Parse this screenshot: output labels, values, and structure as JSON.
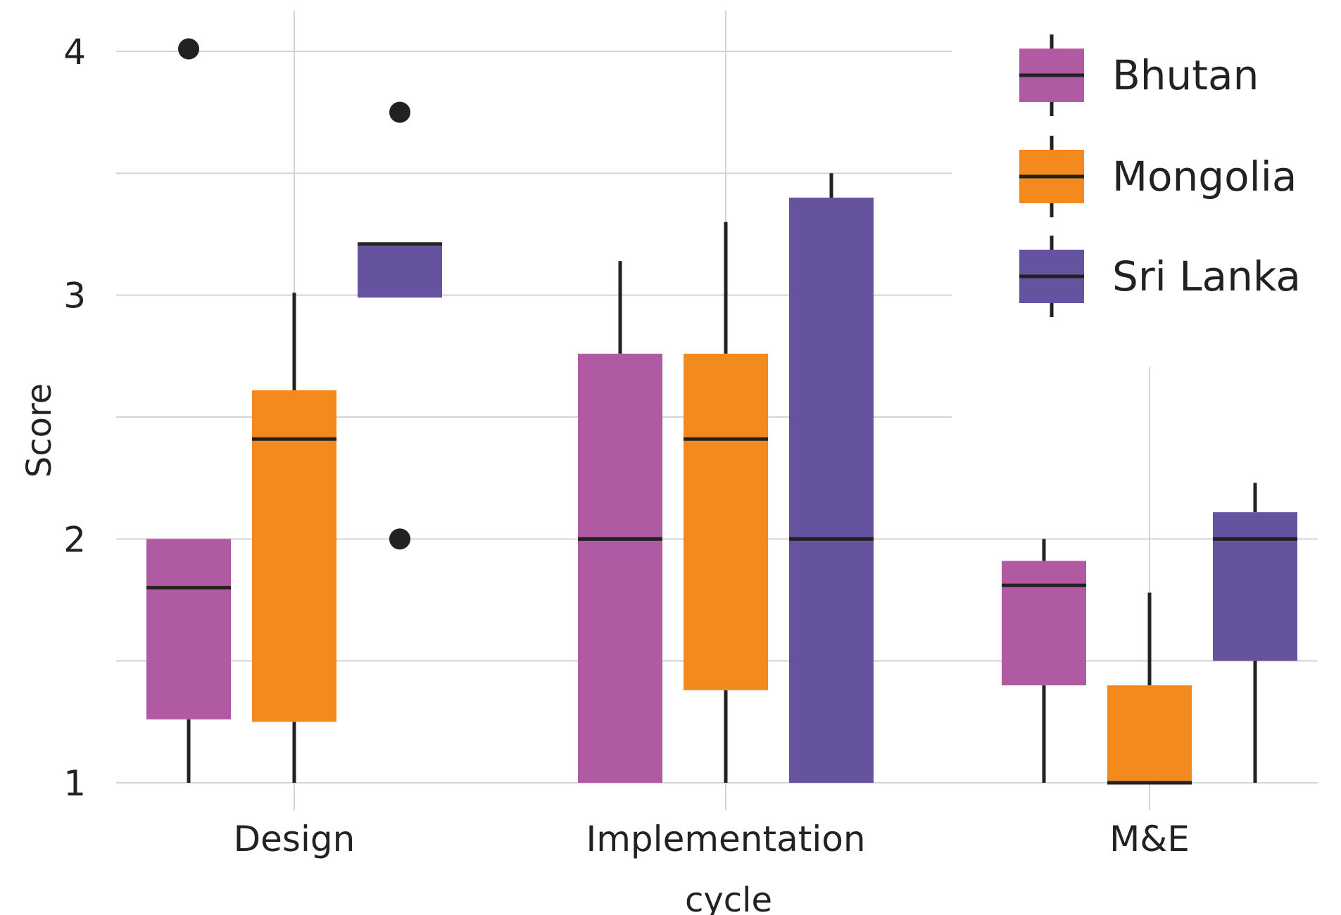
{
  "chart_data": {
    "type": "box",
    "xlabel": "cycle",
    "ylabel": "Score",
    "categories": [
      "Design",
      "Implementation",
      "M&E"
    ],
    "ylim": [
      0.82,
      4.2
    ],
    "yticks": [
      "1",
      "2",
      "3",
      "4"
    ],
    "grid": true,
    "legend": {
      "placement": "top-right"
    },
    "series": [
      {
        "name": "Bhutan",
        "color": "#b05aa4",
        "boxes": [
          {
            "category": "Design",
            "whisker_low": 1.0,
            "q1": 1.26,
            "median": 1.8,
            "q3": 2.0,
            "whisker_high": 2.0,
            "outliers": [
              4.01
            ]
          },
          {
            "category": "Implementation",
            "whisker_low": 1.0,
            "q1": 1.0,
            "median": 2.0,
            "q3": 2.76,
            "whisker_high": 3.14,
            "outliers": []
          },
          {
            "category": "M&E",
            "whisker_low": 1.0,
            "q1": 1.4,
            "median": 1.81,
            "q3": 1.91,
            "whisker_high": 2.0,
            "outliers": []
          }
        ]
      },
      {
        "name": "Mongolia",
        "color": "#f28a1e",
        "boxes": [
          {
            "category": "Design",
            "whisker_low": 1.0,
            "q1": 1.25,
            "median": 2.41,
            "q3": 2.61,
            "whisker_high": 3.01,
            "outliers": []
          },
          {
            "category": "Implementation",
            "whisker_low": 1.0,
            "q1": 1.38,
            "median": 2.41,
            "q3": 2.76,
            "whisker_high": 3.3,
            "outliers": []
          },
          {
            "category": "M&E",
            "whisker_low": 1.0,
            "q1": 1.0,
            "median": 1.0,
            "q3": 1.4,
            "whisker_high": 1.78,
            "outliers": []
          }
        ]
      },
      {
        "name": "Sri Lanka",
        "color": "#6553a0",
        "boxes": [
          {
            "category": "Design",
            "whisker_low": 2.99,
            "q1": 2.99,
            "median": 3.21,
            "q3": 3.21,
            "whisker_high": 3.21,
            "outliers": [
              2.0,
              3.75
            ]
          },
          {
            "category": "Implementation",
            "whisker_low": 1.0,
            "q1": 1.0,
            "median": 2.0,
            "q3": 3.4,
            "whisker_high": 3.5,
            "outliers": []
          },
          {
            "category": "M&E",
            "whisker_low": 1.0,
            "q1": 1.5,
            "median": 2.0,
            "q3": 2.11,
            "whisker_high": 2.23,
            "outliers": []
          }
        ]
      }
    ]
  }
}
